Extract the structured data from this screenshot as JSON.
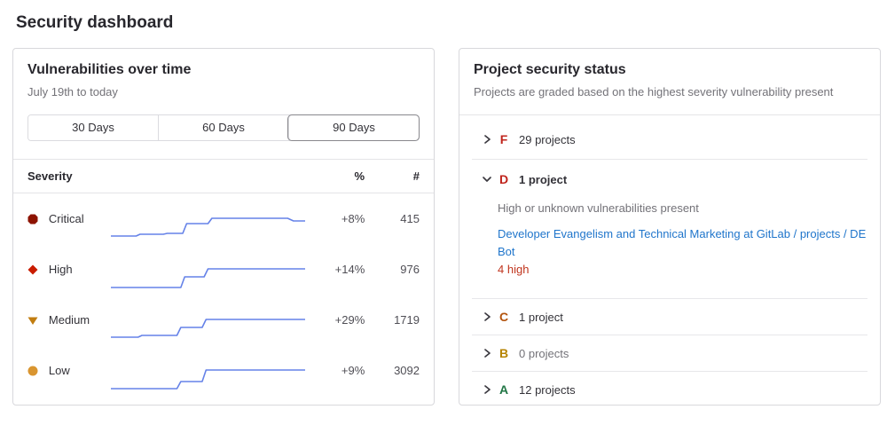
{
  "page": {
    "title": "Security dashboard"
  },
  "vulns_panel": {
    "title": "Vulnerabilities over time",
    "subtitle": "July 19th to today",
    "time_ranges": {
      "d30": "30 Days",
      "d60": "60 Days",
      "d90": "90 Days",
      "selected": "90 Days"
    },
    "table": {
      "headers": {
        "severity": "Severity",
        "percent": "%",
        "count": "#"
      },
      "rows": [
        {
          "label": "Critical",
          "color": "#8d1300",
          "percent": "+8%",
          "count": "415",
          "sparkline": [
            [
              0,
              26
            ],
            [
              13,
              26
            ],
            [
              15,
              24
            ],
            [
              27,
              24
            ],
            [
              29,
              23
            ],
            [
              37,
              23
            ],
            [
              39,
              12
            ],
            [
              50,
              12
            ],
            [
              52,
              6
            ],
            [
              91,
              6
            ],
            [
              94,
              9
            ],
            [
              100,
              9
            ]
          ]
        },
        {
          "label": "High",
          "color": "#c91c00",
          "percent": "+14%",
          "count": "976",
          "sparkline": [
            [
              0,
              27
            ],
            [
              36,
              27
            ],
            [
              38,
              15
            ],
            [
              48,
              15
            ],
            [
              50,
              6
            ],
            [
              100,
              6
            ]
          ]
        },
        {
          "label": "Medium",
          "color": "#c17d10",
          "percent": "+29%",
          "count": "1719",
          "sparkline": [
            [
              0,
              26
            ],
            [
              14,
              26
            ],
            [
              16,
              24
            ],
            [
              34,
              24
            ],
            [
              36,
              15
            ],
            [
              47,
              15
            ],
            [
              49,
              6
            ],
            [
              100,
              6
            ]
          ]
        },
        {
          "label": "Low",
          "color": "#d99530",
          "percent": "+9%",
          "count": "3092",
          "sparkline": [
            [
              0,
              27
            ],
            [
              34,
              27
            ],
            [
              36,
              19
            ],
            [
              47,
              19
            ],
            [
              49,
              6
            ],
            [
              100,
              6
            ]
          ]
        }
      ]
    }
  },
  "status_panel": {
    "title": "Project security status",
    "subtitle": "Projects are graded based on the highest severity vulnerability present",
    "grades": [
      {
        "letter": "F",
        "color": "#c0241c",
        "count_label": "29 projects"
      },
      {
        "letter": "D",
        "color": "#c0241c",
        "count_label": "1 project",
        "description": "High or unknown vulnerabilities present",
        "project_link": "Developer Evangelism and Technical Marketing at GitLab / projects / DE Bot",
        "vulnerability_count": "4 high"
      },
      {
        "letter": "C",
        "color": "#b3540e",
        "count_label": "1 project"
      },
      {
        "letter": "B",
        "color": "#b58300",
        "count_label": "0 projects"
      },
      {
        "letter": "A",
        "color": "#217645",
        "count_label": "12 projects"
      }
    ]
  }
}
